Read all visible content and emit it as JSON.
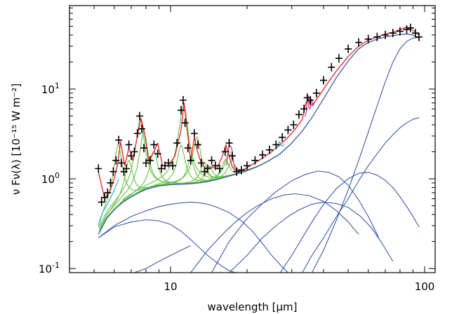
{
  "chart_data": {
    "type": "scatter",
    "title": "",
    "xlabel": "wavelength [μm]",
    "ylabel": "ν Fν(λ) [10⁻¹⁵ W m⁻²]",
    "xscale": "log",
    "yscale": "log",
    "xlim": [
      4,
      110
    ],
    "ylim": [
      0.09,
      85
    ],
    "grid": false,
    "legend": "none",
    "x_ticks": [
      {
        "value": 10,
        "label": "10"
      },
      {
        "value": 100,
        "label": "100"
      }
    ],
    "y_ticks": [
      {
        "value": 0.1,
        "base": "10",
        "exp": "-1"
      },
      {
        "value": 1,
        "base": "10",
        "exp": "0"
      },
      {
        "value": 10,
        "base": "10",
        "exp": "1"
      }
    ],
    "colors": {
      "data": "#000000",
      "total_fit": "#e8202a",
      "features": "#66c244",
      "continuum": "#3a5aa8",
      "lines": "#d13a8e",
      "cyan": "#38b8d8"
    },
    "series": [
      {
        "role": "data",
        "x": [
          5.2,
          5.35,
          5.5,
          5.65,
          5.8,
          5.95,
          6.1,
          6.25,
          6.4,
          6.55,
          6.7,
          6.85,
          7.0,
          7.2,
          7.4,
          7.55,
          7.7,
          7.85,
          8.0,
          8.3,
          8.6,
          8.9,
          9.2,
          9.5,
          9.8,
          10.2,
          10.6,
          11.0,
          11.2,
          11.4,
          11.7,
          12.0,
          12.4,
          12.8,
          13.2,
          13.6,
          14.0,
          14.5,
          15.0,
          15.6,
          16.4,
          17.0,
          17.5,
          18.2,
          19.0,
          20.0,
          21.5,
          23.0,
          24.5,
          26.0,
          27.5,
          29.0,
          30.5,
          32.0,
          33.5,
          34.5,
          35.5,
          37.5,
          40.0,
          43.0,
          46.0,
          50.0,
          55.0,
          60.0,
          65.0,
          70.0,
          75.0,
          80.0,
          85.0,
          88.0,
          92.0,
          95.0
        ],
        "y": [
          1.3,
          0.55,
          0.62,
          0.7,
          0.9,
          1.2,
          1.6,
          2.7,
          1.5,
          1.2,
          1.3,
          2.4,
          1.8,
          2.0,
          3.2,
          5.0,
          3.6,
          2.2,
          1.5,
          1.6,
          2.4,
          1.9,
          1.3,
          1.4,
          1.5,
          1.4,
          2.5,
          5.8,
          7.5,
          4.2,
          2.2,
          1.6,
          3.2,
          2.4,
          1.5,
          1.2,
          1.3,
          1.6,
          1.4,
          1.3,
          2.0,
          2.5,
          1.8,
          1.2,
          1.25,
          1.4,
          1.6,
          1.85,
          2.1,
          2.4,
          2.9,
          3.5,
          4.0,
          5.2,
          6.0,
          8.0,
          7.5,
          9.0,
          12.5,
          17.5,
          22.0,
          28.0,
          33.0,
          36.0,
          38.0,
          40.0,
          42.0,
          44.0,
          46.0,
          48.0,
          42.0,
          38.0
        ]
      },
      {
        "role": "total_fit",
        "x": [
          5.2,
          5.5,
          5.8,
          6.0,
          6.2,
          6.35,
          6.6,
          6.85,
          7.1,
          7.4,
          7.65,
          7.9,
          8.2,
          8.6,
          8.9,
          9.3,
          9.8,
          10.4,
          11.0,
          11.3,
          11.6,
          12.0,
          12.4,
          12.7,
          13.2,
          13.8,
          14.5,
          15.2,
          16.0,
          16.5,
          17.0,
          17.5,
          18.2,
          19.5,
          21.0,
          23.0,
          25.0,
          27.0,
          29.0,
          31.0,
          33.0,
          34.0,
          34.8,
          35.6,
          37.0,
          40.0,
          45.0,
          50.0,
          55.0,
          60.0,
          65.0,
          70.0,
          75.0,
          80.0,
          85.0,
          90.0,
          95.0
        ],
        "y": [
          1.2,
          0.6,
          0.75,
          1.0,
          1.5,
          2.6,
          1.4,
          2.2,
          1.6,
          3.0,
          4.7,
          3.2,
          1.6,
          2.0,
          2.5,
          1.4,
          1.4,
          1.8,
          3.5,
          7.0,
          3.6,
          1.6,
          2.9,
          2.1,
          1.5,
          1.3,
          1.35,
          1.3,
          1.8,
          2.4,
          1.8,
          1.35,
          1.2,
          1.28,
          1.45,
          1.7,
          2.0,
          2.4,
          2.9,
          3.6,
          4.6,
          6.8,
          8.0,
          6.5,
          7.2,
          10.0,
          16.0,
          23.0,
          30.0,
          35.0,
          38.0,
          41.0,
          43.0,
          46.0,
          49.0,
          45.0,
          40.0
        ]
      },
      {
        "role": "continuum_total",
        "x": [
          5.2,
          5.6,
          6.0,
          6.5,
          7.0,
          7.5,
          8.0,
          8.5,
          9.0,
          10.0,
          11.0,
          12.0,
          13.0,
          14.0,
          15.0,
          16.0,
          17.0,
          18.0,
          20.0,
          22.0,
          24.0,
          27.0,
          30.0,
          33.0,
          36.0,
          40.0,
          45.0,
          50.0,
          55.0,
          60.0,
          65.0,
          70.0,
          75.0,
          80.0,
          85.0,
          90.0,
          95.0
        ],
        "y": [
          0.24,
          0.36,
          0.45,
          0.55,
          0.63,
          0.7,
          0.76,
          0.8,
          0.83,
          0.86,
          0.87,
          0.88,
          0.9,
          0.93,
          0.97,
          1.02,
          1.07,
          1.12,
          1.23,
          1.37,
          1.55,
          1.9,
          2.5,
          3.4,
          4.8,
          7.8,
          13.5,
          20.5,
          28.0,
          33.0,
          36.0,
          38.0,
          39.5,
          40.5,
          41.0,
          40.0,
          37.0
        ]
      },
      {
        "role": "continuum_component",
        "x": [
          5.2,
          6.0,
          7.0,
          8.0,
          9.0,
          10.0,
          11.0,
          12.0,
          13.0,
          14.0,
          15.0,
          16.0,
          17.0,
          18.0,
          19.0
        ],
        "y": [
          0.22,
          0.29,
          0.33,
          0.35,
          0.34,
          0.31,
          0.26,
          0.21,
          0.17,
          0.14,
          0.12,
          0.105,
          0.095,
          0.09,
          0.085
        ]
      },
      {
        "role": "continuum_component",
        "x": [
          5.2,
          6.0,
          7.0,
          8.0,
          9.0,
          10.0,
          11.0,
          12.0,
          13.0,
          14.0,
          15.0,
          17.0,
          19.0,
          21.0,
          23.0,
          25.0,
          27.0,
          29.0
        ],
        "y": [
          0.22,
          0.3,
          0.38,
          0.44,
          0.49,
          0.52,
          0.54,
          0.55,
          0.54,
          0.52,
          0.49,
          0.42,
          0.34,
          0.26,
          0.19,
          0.14,
          0.11,
          0.09
        ]
      },
      {
        "role": "continuum_component",
        "x": [
          7.2,
          8.0,
          9.0,
          10.0,
          11.0,
          12.0
        ],
        "y": [
          0.085,
          0.1,
          0.12,
          0.14,
          0.16,
          0.18
        ]
      },
      {
        "role": "continuum_component",
        "x": [
          12.0,
          14.0,
          16.0,
          18.0,
          20.0,
          22.0,
          25.0,
          28.0,
          31.0,
          35.0,
          40.0,
          45.0,
          50.0,
          55.0
        ],
        "y": [
          0.09,
          0.16,
          0.24,
          0.33,
          0.42,
          0.5,
          0.6,
          0.66,
          0.68,
          0.65,
          0.56,
          0.44,
          0.33,
          0.24
        ]
      },
      {
        "role": "continuum_component",
        "x": [
          14.5,
          17.0,
          20.0,
          23.0,
          26.0,
          30.0,
          34.0,
          38.0,
          42.0,
          46.0,
          50.0,
          55.0,
          60.0,
          66.0
        ],
        "y": [
          0.09,
          0.2,
          0.36,
          0.53,
          0.72,
          0.95,
          1.12,
          1.22,
          1.18,
          1.05,
          0.85,
          0.58,
          0.38,
          0.22
        ]
      },
      {
        "role": "continuum_component",
        "x": [
          17.0,
          20.0,
          23.0,
          26.0,
          29.0,
          32.0,
          36.0,
          40.0,
          45.0,
          50.0,
          56.0,
          62.0,
          68.0,
          75.0
        ],
        "y": [
          0.09,
          0.14,
          0.22,
          0.3,
          0.38,
          0.45,
          0.52,
          0.55,
          0.53,
          0.48,
          0.38,
          0.28,
          0.19,
          0.12
        ]
      },
      {
        "role": "continuum_component",
        "x": [
          27.0,
          30.0,
          33.0,
          36.0,
          40.0,
          45.0,
          50.0,
          55.0,
          60.0,
          65.0,
          70.0,
          75.0,
          80.0,
          85.0,
          90.0,
          95.0
        ],
        "y": [
          0.09,
          0.14,
          0.22,
          0.33,
          0.52,
          0.78,
          1.0,
          1.15,
          1.18,
          1.1,
          0.96,
          0.8,
          0.63,
          0.49,
          0.38,
          0.29
        ]
      },
      {
        "role": "continuum_component",
        "x": [
          33.0,
          36.0,
          40.0,
          45.0,
          50.0,
          55.0,
          60.0,
          65.0,
          70.0,
          75.0,
          80.0,
          85.0,
          90.0,
          95.0
        ],
        "y": [
          0.09,
          0.14,
          0.22,
          0.38,
          0.6,
          0.95,
          1.4,
          1.9,
          2.5,
          3.1,
          3.7,
          4.2,
          4.6,
          4.8
        ]
      },
      {
        "role": "continuum_component",
        "x": [
          36.0,
          40.0,
          45.0,
          50.0,
          55.0,
          60.0,
          65.0,
          70.0,
          75.0,
          80.0,
          85.0,
          90.0,
          95.0
        ],
        "y": [
          0.09,
          0.16,
          0.35,
          0.75,
          1.6,
          3.3,
          6.5,
          12.0,
          20.0,
          28.0,
          34.0,
          37.0,
          37.5
        ]
      },
      {
        "role": "line_segment",
        "x": [
          33.8,
          34.2,
          34.6,
          34.8,
          35.0,
          35.4,
          35.8,
          36.3,
          37.0
        ],
        "y": [
          4.9,
          5.5,
          8.3,
          8.5,
          6.2,
          6.0,
          7.8,
          6.5,
          7.2
        ]
      },
      {
        "role": "line_segment",
        "x": [
          16.6,
          17.0,
          17.4,
          17.8,
          18.2,
          18.8
        ],
        "y": [
          1.4,
          2.4,
          2.2,
          1.35,
          1.25,
          1.2
        ]
      },
      {
        "role": "cyan_segment",
        "x": [
          5.2,
          5.4,
          5.7,
          6.0,
          6.25
        ],
        "y": [
          0.3,
          0.42,
          0.55,
          0.75,
          1.0
        ]
      },
      {
        "role": "cyan_segment",
        "x": [
          25.5,
          26.2,
          26.8,
          27.4,
          28.0
        ],
        "y": [
          2.1,
          2.2,
          2.6,
          2.3,
          2.4
        ]
      }
    ],
    "features": [
      {
        "center": 6.22,
        "peak": 1.9
      },
      {
        "center": 6.85,
        "peak": 1.0
      },
      {
        "center": 7.6,
        "peak": 3.9
      },
      {
        "center": 7.85,
        "peak": 2.6
      },
      {
        "center": 8.6,
        "peak": 1.25
      },
      {
        "center": 11.25,
        "peak": 6.0
      },
      {
        "center": 11.0,
        "peak": 1.5
      },
      {
        "center": 12.0,
        "peak": 0.8
      },
      {
        "center": 12.7,
        "peak": 2.0
      },
      {
        "center": 13.55,
        "peak": 0.6
      },
      {
        "center": 14.2,
        "peak": 0.45
      },
      {
        "center": 16.45,
        "peak": 0.6
      },
      {
        "center": 17.0,
        "peak": 0.95
      },
      {
        "center": 17.4,
        "peak": 0.5
      }
    ]
  }
}
